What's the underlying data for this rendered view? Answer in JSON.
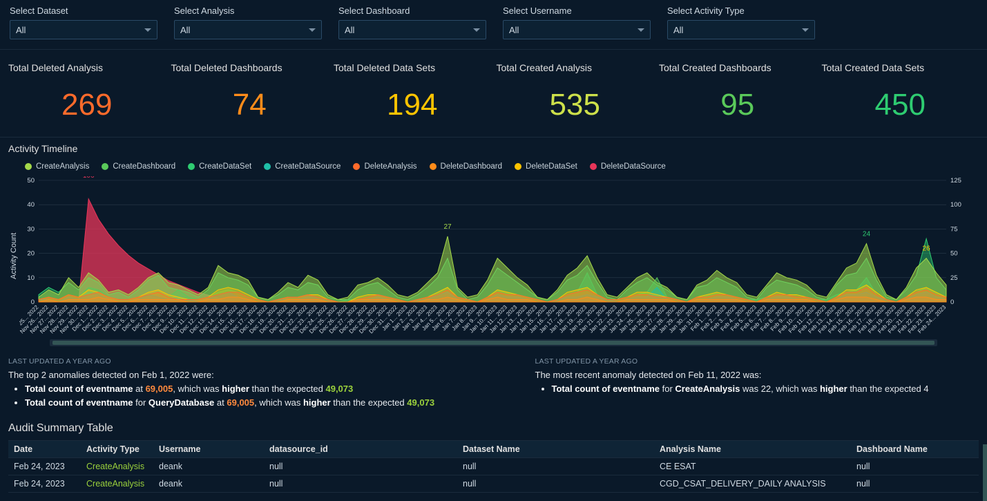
{
  "filters": [
    {
      "label": "Select Dataset",
      "value": "All"
    },
    {
      "label": "Select Analysis",
      "value": "All"
    },
    {
      "label": "Select Dashboard",
      "value": "All"
    },
    {
      "label": "Select Username",
      "value": "All"
    },
    {
      "label": "Select Activity Type",
      "value": "All"
    }
  ],
  "kpis": [
    {
      "label": "Total Deleted Analysis",
      "value": "269",
      "color": "#ff6b2b"
    },
    {
      "label": "Total Deleted Dashboards",
      "value": "74",
      "color": "#ff8c1a"
    },
    {
      "label": "Total Deleted Data Sets",
      "value": "194",
      "color": "#ffc400"
    },
    {
      "label": "Total Created Analysis",
      "value": "535",
      "color": "#cde04a"
    },
    {
      "label": "Total Created Dashboards",
      "value": "95",
      "color": "#5ac95a"
    },
    {
      "label": "Total Created Data Sets",
      "value": "450",
      "color": "#2ecc71"
    }
  ],
  "chart": {
    "title": "Activity Timeline",
    "y_label": "Activity Count",
    "legend": [
      {
        "name": "CreateAnalysis",
        "color": "#a4d94a"
      },
      {
        "name": "CreateDashboard",
        "color": "#5ac95a"
      },
      {
        "name": "CreateDataSet",
        "color": "#2ecc71"
      },
      {
        "name": "CreateDataSource",
        "color": "#1fbfa8"
      },
      {
        "name": "DeleteAnalysis",
        "color": "#ff6b2b"
      },
      {
        "name": "DeleteDashboard",
        "color": "#ff8c1a"
      },
      {
        "name": "DeleteDataSet",
        "color": "#ffc400"
      },
      {
        "name": "DeleteDataSource",
        "color": "#e83559"
      }
    ],
    "x_labels": [
      "Nov 25, 2022",
      "Nov 26, 2022",
      "Nov 27, 2022",
      "Nov 28, 2022",
      "Nov 29, 2022",
      "Nov 30, 2022",
      "Dec 1, 2022",
      "Dec 2, 2022",
      "Dec 3, 2022",
      "Dec 4, 2022",
      "Dec 5, 2022",
      "Dec 6, 2022",
      "Dec 7, 2022",
      "Dec 8, 2022",
      "Dec 9, 2022",
      "Dec 10, 2022",
      "Dec 11, 2022",
      "Dec 12, 2022",
      "Dec 13, 2022",
      "Dec 14, 2022",
      "Dec 15, 2022",
      "Dec 16, 2022",
      "Dec 17, 2022",
      "Dec 18, 2022",
      "Dec 19, 2022",
      "Dec 20, 2022",
      "Dec 21, 2022",
      "Dec 22, 2022",
      "Dec 23, 2022",
      "Dec 24, 2022",
      "Dec 25, 2022",
      "Dec 26, 2022",
      "Dec 27, 2022",
      "Dec 28, 2022",
      "Dec 29, 2022",
      "Dec 30, 2022",
      "Dec 31, 2022",
      "Jan 1, 2023",
      "Jan 2, 2023",
      "Jan 3, 2023",
      "Jan 4, 2023",
      "Jan 5, 2023",
      "Jan 6, 2023",
      "Jan 7, 2023",
      "Jan 8, 2023",
      "Jan 9, 2023",
      "Jan 10, 2023",
      "Jan 11, 2023",
      "Jan 12, 2023",
      "Jan 13, 2023",
      "Jan 14, 2023",
      "Jan 15, 2023",
      "Jan 16, 2023",
      "Jan 17, 2023",
      "Jan 18, 2023",
      "Jan 19, 2023",
      "Jan 20, 2023",
      "Jan 21, 2023",
      "Jan 22, 2023",
      "Jan 23, 2023",
      "Jan 24, 2023",
      "Jan 25, 2023",
      "Jan 26, 2023",
      "Jan 27, 2023",
      "Jan 28, 2023",
      "Jan 29, 2023",
      "Jan 30, 2023",
      "Jan 31, 2023",
      "Feb 1, 2023",
      "Feb 2, 2023",
      "Feb 3, 2023",
      "Feb 4, 2023",
      "Feb 5, 2023",
      "Feb 6, 2023",
      "Feb 7, 2023",
      "Feb 8, 2023",
      "Feb 9, 2023",
      "Feb 10, 2023",
      "Feb 11, 2023",
      "Feb 12, 2023",
      "Feb 13, 2023",
      "Feb 14, 2023",
      "Feb 15, 2023",
      "Feb 16, 2023",
      "Feb 17, 2023",
      "Feb 18, 2023",
      "Feb 19, 2023",
      "Feb 20, 2023",
      "Feb 21, 2023",
      "Feb 22, 2023",
      "Feb 23, 2023",
      "Feb 24, 2023"
    ],
    "left_axis": {
      "min": 0,
      "max": 50,
      "step": 10,
      "grid_color": "#2a3b4c"
    },
    "right_axis": {
      "min": 0,
      "max": 125,
      "step": 25
    },
    "series": {
      "CreateAnalysis": [
        2,
        5,
        3,
        10,
        6,
        12,
        9,
        4,
        5,
        3,
        6,
        10,
        12,
        8,
        7,
        5,
        3,
        6,
        15,
        12,
        11,
        9,
        2,
        1,
        4,
        8,
        6,
        11,
        9,
        3,
        1,
        2,
        7,
        8,
        10,
        7,
        3,
        2,
        4,
        8,
        12,
        27,
        6,
        2,
        3,
        9,
        18,
        14,
        10,
        7,
        2,
        1,
        5,
        11,
        14,
        19,
        10,
        3,
        2,
        6,
        10,
        12,
        8,
        6,
        2,
        1,
        7,
        9,
        13,
        10,
        8,
        3,
        2,
        7,
        12,
        10,
        9,
        7,
        3,
        2,
        8,
        14,
        16,
        24,
        11,
        3,
        1,
        6,
        14,
        18,
        12,
        7
      ],
      "CreateDashboard": [
        1,
        2,
        1,
        3,
        2,
        6,
        5,
        2,
        1,
        1,
        2,
        3,
        3,
        2,
        5,
        2,
        1,
        2,
        4,
        5,
        4,
        2,
        1,
        0,
        1,
        2,
        2,
        3,
        2,
        1,
        0,
        1,
        1,
        2,
        3,
        2,
        1,
        0,
        1,
        2,
        4,
        6,
        2,
        1,
        0,
        2,
        5,
        4,
        3,
        2,
        1,
        0,
        1,
        3,
        4,
        12,
        3,
        1,
        1,
        2,
        3,
        4,
        10,
        2,
        1,
        0,
        2,
        3,
        4,
        3,
        2,
        1,
        1,
        2,
        3,
        3,
        2,
        2,
        1,
        1,
        3,
        4,
        5,
        10,
        3,
        1,
        0,
        2,
        4,
        6,
        4,
        2
      ],
      "CreateDataSet": [
        3,
        6,
        4,
        8,
        5,
        10,
        8,
        3,
        4,
        2,
        5,
        9,
        11,
        6,
        5,
        4,
        2,
        5,
        12,
        10,
        9,
        7,
        2,
        1,
        3,
        6,
        5,
        8,
        7,
        2,
        1,
        1,
        5,
        7,
        8,
        5,
        2,
        1,
        3,
        6,
        10,
        18,
        5,
        1,
        2,
        7,
        14,
        11,
        8,
        5,
        2,
        1,
        4,
        9,
        11,
        15,
        8,
        2,
        1,
        5,
        8,
        10,
        7,
        5,
        2,
        1,
        6,
        7,
        10,
        8,
        6,
        2,
        1,
        6,
        9,
        8,
        7,
        5,
        2,
        1,
        7,
        11,
        12,
        18,
        9,
        2,
        1,
        5,
        11,
        26,
        10,
        5
      ],
      "CreateDataSource": [
        1,
        1,
        0,
        2,
        1,
        4,
        3,
        1,
        0,
        0,
        1,
        3,
        2,
        1,
        2,
        1,
        0,
        1,
        3,
        4,
        2,
        1,
        0,
        0,
        1,
        1,
        1,
        2,
        2,
        1,
        0,
        0,
        1,
        1,
        2,
        1,
        0,
        0,
        1,
        1,
        3,
        4,
        1,
        0,
        0,
        1,
        3,
        2,
        2,
        1,
        0,
        0,
        1,
        2,
        2,
        3,
        2,
        1,
        0,
        1,
        2,
        2,
        6,
        1,
        0,
        0,
        1,
        1,
        2,
        2,
        1,
        0,
        0,
        1,
        2,
        2,
        1,
        1,
        0,
        0,
        1,
        3,
        3,
        4,
        2,
        1,
        0,
        1,
        3,
        4,
        2,
        1
      ],
      "DeleteAnalysis": [
        1,
        2,
        1,
        3,
        2,
        3,
        4,
        2,
        1,
        1,
        2,
        3,
        4,
        2,
        1,
        1,
        1,
        2,
        3,
        4,
        4,
        2,
        1,
        0,
        1,
        2,
        2,
        3,
        2,
        1,
        0,
        0,
        1,
        2,
        3,
        2,
        1,
        0,
        1,
        2,
        3,
        5,
        2,
        1,
        0,
        2,
        4,
        3,
        3,
        2,
        1,
        0,
        1,
        3,
        4,
        5,
        3,
        1,
        1,
        2,
        3,
        3,
        2,
        2,
        1,
        0,
        2,
        2,
        3,
        3,
        2,
        1,
        0,
        2,
        3,
        3,
        2,
        2,
        1,
        0,
        2,
        4,
        4,
        6,
        3,
        1,
        0,
        2,
        4,
        5,
        3,
        2
      ],
      "DeleteDashboard": [
        0,
        1,
        0,
        1,
        1,
        1,
        2,
        1,
        0,
        0,
        1,
        1,
        1,
        1,
        1,
        0,
        0,
        1,
        1,
        2,
        2,
        1,
        0,
        0,
        0,
        1,
        1,
        1,
        1,
        0,
        0,
        0,
        1,
        1,
        1,
        1,
        0,
        0,
        0,
        1,
        1,
        2,
        1,
        0,
        0,
        1,
        2,
        1,
        1,
        1,
        0,
        0,
        0,
        1,
        1,
        2,
        1,
        0,
        0,
        1,
        1,
        1,
        1,
        1,
        0,
        0,
        1,
        1,
        1,
        1,
        1,
        0,
        0,
        1,
        1,
        1,
        1,
        1,
        0,
        0,
        1,
        2,
        2,
        2,
        1,
        0,
        0,
        1,
        2,
        2,
        1,
        1
      ],
      "DeleteDataSet": [
        1,
        2,
        1,
        3,
        2,
        5,
        4,
        2,
        1,
        1,
        2,
        4,
        5,
        3,
        2,
        1,
        1,
        2,
        5,
        6,
        5,
        3,
        1,
        0,
        1,
        2,
        2,
        3,
        3,
        1,
        0,
        0,
        2,
        3,
        3,
        2,
        1,
        0,
        1,
        2,
        4,
        6,
        2,
        1,
        0,
        2,
        5,
        4,
        3,
        2,
        1,
        0,
        1,
        4,
        5,
        6,
        3,
        1,
        1,
        2,
        4,
        4,
        3,
        2,
        1,
        0,
        2,
        3,
        4,
        3,
        2,
        1,
        0,
        2,
        4,
        3,
        3,
        2,
        1,
        0,
        2,
        5,
        5,
        7,
        4,
        1,
        0,
        2,
        5,
        6,
        4,
        2
      ],
      "DeleteDataSource": [
        0,
        0,
        0,
        0,
        0,
        106,
        85,
        70,
        58,
        48,
        40,
        34,
        28,
        22,
        18,
        14,
        10,
        7,
        4,
        1,
        0,
        0,
        0,
        0,
        0,
        0,
        0,
        0,
        0,
        0,
        0,
        0,
        0,
        0,
        0,
        0,
        0,
        0,
        0,
        0,
        0,
        0,
        0,
        0,
        0,
        0,
        0,
        0,
        0,
        0,
        0,
        0,
        0,
        0,
        0,
        0,
        0,
        0,
        0,
        0,
        0,
        0,
        0,
        0,
        0,
        0,
        0,
        0,
        0,
        0,
        0,
        0,
        0,
        0,
        0,
        0,
        0,
        0,
        0,
        0,
        0,
        0,
        0,
        0,
        0,
        0,
        0,
        0,
        0,
        0,
        0,
        0
      ]
    },
    "annotations": [
      {
        "text": "106",
        "x_index": 5,
        "y_value": 50,
        "color": "#e83559",
        "axis": "right"
      },
      {
        "text": "27",
        "x_index": 41,
        "y_value": 29,
        "color": "#a4d94a",
        "axis": "left"
      },
      {
        "text": "24",
        "x_index": 83,
        "y_value": 26,
        "color": "#2ecc71",
        "axis": "left"
      },
      {
        "text": "26",
        "x_index": 89,
        "y_value": 20,
        "color": "#ffc400",
        "axis": "left"
      }
    ],
    "plot_bg": "#0a1929",
    "axis_color": "#cfd9e2",
    "tick_fontsize": 9.5
  },
  "narratives": {
    "left": {
      "updated": "LAST UPDATED A YEAR AGO",
      "intro": "The top 2 anomalies detected on Feb 1, 2022 were:",
      "bullets": [
        {
          "pre": "Total count of eventname",
          "mid": " at ",
          "hl1": "69,005",
          "mid2": ", which was ",
          "b": "higher",
          "mid3": " than the expected ",
          "hl2": "49,073"
        },
        {
          "pre": "Total count of eventname",
          "mid": " for ",
          "b0": "QueryDatabase",
          "mid1b": " at ",
          "hl1": "69,005",
          "mid2": ", which was ",
          "b": "higher",
          "mid3": " than the expected ",
          "hl2": "49,073"
        }
      ]
    },
    "right": {
      "updated": "LAST UPDATED A YEAR AGO",
      "intro": "The most recent anomaly detected on Feb 11, 2022 was:",
      "bullets": [
        {
          "pre": "Total count of eventname",
          "mid": " for ",
          "b0": "CreateAnalysis",
          "mid1b": " was 22, which was ",
          "b": "higher",
          "mid3": " than the expected 4"
        }
      ]
    }
  },
  "table": {
    "title": "Audit Summary Table",
    "columns": [
      "Date",
      "Activity Type",
      "Username",
      "datasource_id",
      "Dataset Name",
      "Analysis Name",
      "Dashboard Name"
    ],
    "col_widths": [
      "105px",
      "105px",
      "160px",
      "280px",
      "285px",
      "285px",
      "auto"
    ],
    "activity_color": "#9bd13c",
    "rows": [
      [
        "Feb 24, 2023",
        "CreateAnalysis",
        "deank",
        "null",
        "null",
        "CE ESAT",
        "null"
      ],
      [
        "Feb 24, 2023",
        "CreateAnalysis",
        "deank",
        "null",
        "null",
        "CGD_CSAT_DELIVERY_DAILY ANALYSIS",
        "null"
      ]
    ]
  }
}
